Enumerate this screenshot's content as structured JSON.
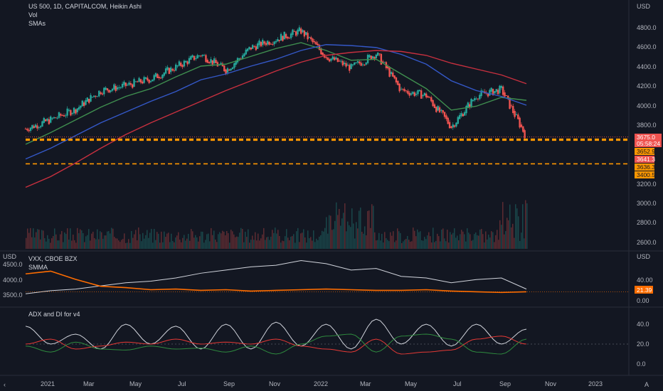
{
  "header": {
    "symbol": "US 500, 1D, CAPITALCOM, Heikin Ashi",
    "vol": "Vol",
    "smas": "SMAs"
  },
  "panes": {
    "price": {
      "axis_unit": "USD",
      "ticks": [
        "4800.0",
        "4600.0",
        "4400.0",
        "4200.0",
        "4000.0",
        "3800.0",
        "3200.0",
        "3000.0",
        "2800.0",
        "2600.0"
      ],
      "price_tag": "3675.0",
      "countdown": "05:58:24",
      "level_tags": [
        "3652.9",
        "3641.3",
        "3636.3",
        "3400.5"
      ]
    },
    "vxx": {
      "left_unit": "USD",
      "right_unit": "USD",
      "left_ticks": [
        "4500.0",
        "4000.0",
        "3500.0"
      ],
      "title": "VXX, CBOE BZX",
      "sub": "SMMA",
      "right_ticks": [
        "40.00",
        "0.00"
      ],
      "value_tag": "21.39"
    },
    "adx": {
      "title": "ADX and DI for v4",
      "ticks": [
        "40.0",
        "20.0",
        "0.0"
      ]
    },
    "time_axis": [
      "2021",
      "Mar",
      "May",
      "Jul",
      "Sep",
      "Nov",
      "2022",
      "Mar",
      "May",
      "Jul",
      "Sep",
      "Nov",
      "2023"
    ]
  },
  "colors": {
    "bg": "#131722",
    "up": "#26a69a",
    "down": "#ef5350",
    "sma_fast": "#3f8e4f",
    "sma_mid": "#3458c8",
    "sma_slow": "#c8303f",
    "level": "#ff9800",
    "vxx": "#d1d4dc",
    "smma": "#ff6d00",
    "adx": "#d1d4dc",
    "di_plus": "#2e8b3e",
    "di_minus": "#e53935"
  },
  "chart_data": [
    {
      "type": "candlestick",
      "name": "US 500 Heikin Ashi",
      "ylim": [
        2500,
        4900
      ],
      "x": [
        "2021-01",
        "2021-02",
        "2021-03",
        "2021-04",
        "2021-05",
        "2021-06",
        "2021-07",
        "2021-08",
        "2021-09",
        "2021-10",
        "2021-11",
        "2021-12",
        "2022-01",
        "2022-02",
        "2022-03",
        "2022-04",
        "2022-05",
        "2022-06",
        "2022-07",
        "2022-08",
        "2022-09"
      ],
      "close": [
        3760,
        3850,
        3960,
        4150,
        4200,
        4270,
        4390,
        4520,
        4360,
        4590,
        4680,
        4760,
        4500,
        4380,
        4530,
        4150,
        4100,
        3780,
        4100,
        4160,
        3675
      ],
      "sma_fast": [
        3600,
        3720,
        3850,
        3980,
        4090,
        4170,
        4290,
        4400,
        4420,
        4500,
        4580,
        4640,
        4560,
        4460,
        4470,
        4320,
        4170,
        3950,
        3990,
        4080,
        4050
      ],
      "sma_mid": [
        3450,
        3560,
        3690,
        3820,
        3930,
        4040,
        4140,
        4260,
        4320,
        4400,
        4470,
        4560,
        4620,
        4610,
        4590,
        4520,
        4420,
        4250,
        4150,
        4090,
        4000
      ],
      "sma_slow": [
        3160,
        3270,
        3410,
        3560,
        3700,
        3820,
        3930,
        4040,
        4150,
        4250,
        4350,
        4440,
        4510,
        4540,
        4560,
        4550,
        4510,
        4430,
        4370,
        4310,
        4220
      ],
      "levels": [
        3652.9,
        3641.3,
        3636.3,
        3400.5
      ]
    },
    {
      "type": "line",
      "name": "VXX, CBOE BZX",
      "ylim": [
        0,
        60
      ],
      "series": [
        {
          "name": "VXX, CBOE BZX",
          "values": [
            3550,
            3650,
            3700,
            3800,
            3900,
            3950,
            4050,
            4200,
            4300,
            4400,
            4450,
            4600,
            4500,
            4300,
            4350,
            4100,
            4050,
            3900,
            4000,
            4050,
            3700
          ]
        },
        {
          "name": "SMMA",
          "values": [
            38,
            42,
            30,
            20,
            18,
            15,
            16,
            14,
            15,
            13,
            14,
            15,
            16,
            15,
            14,
            14,
            15,
            13,
            12,
            11,
            12
          ]
        }
      ]
    },
    {
      "type": "line",
      "name": "ADX and DI for v4",
      "ylim": [
        -5,
        50
      ],
      "series": [
        {
          "values": [
            38,
            20,
            30,
            15,
            40,
            20,
            38,
            15,
            40,
            15,
            42,
            18,
            40,
            15,
            45,
            20,
            40,
            18,
            40,
            20,
            35
          ]
        },
        {
          "values": [
            20,
            25,
            15,
            18,
            22,
            20,
            25,
            20,
            22,
            20,
            25,
            18,
            15,
            12,
            25,
            10,
            12,
            14,
            25,
            28,
            20
          ]
        },
        {
          "values": [
            18,
            12,
            22,
            15,
            14,
            18,
            15,
            16,
            12,
            18,
            10,
            20,
            28,
            30,
            12,
            28,
            30,
            25,
            12,
            10,
            25
          ]
        }
      ]
    }
  ]
}
